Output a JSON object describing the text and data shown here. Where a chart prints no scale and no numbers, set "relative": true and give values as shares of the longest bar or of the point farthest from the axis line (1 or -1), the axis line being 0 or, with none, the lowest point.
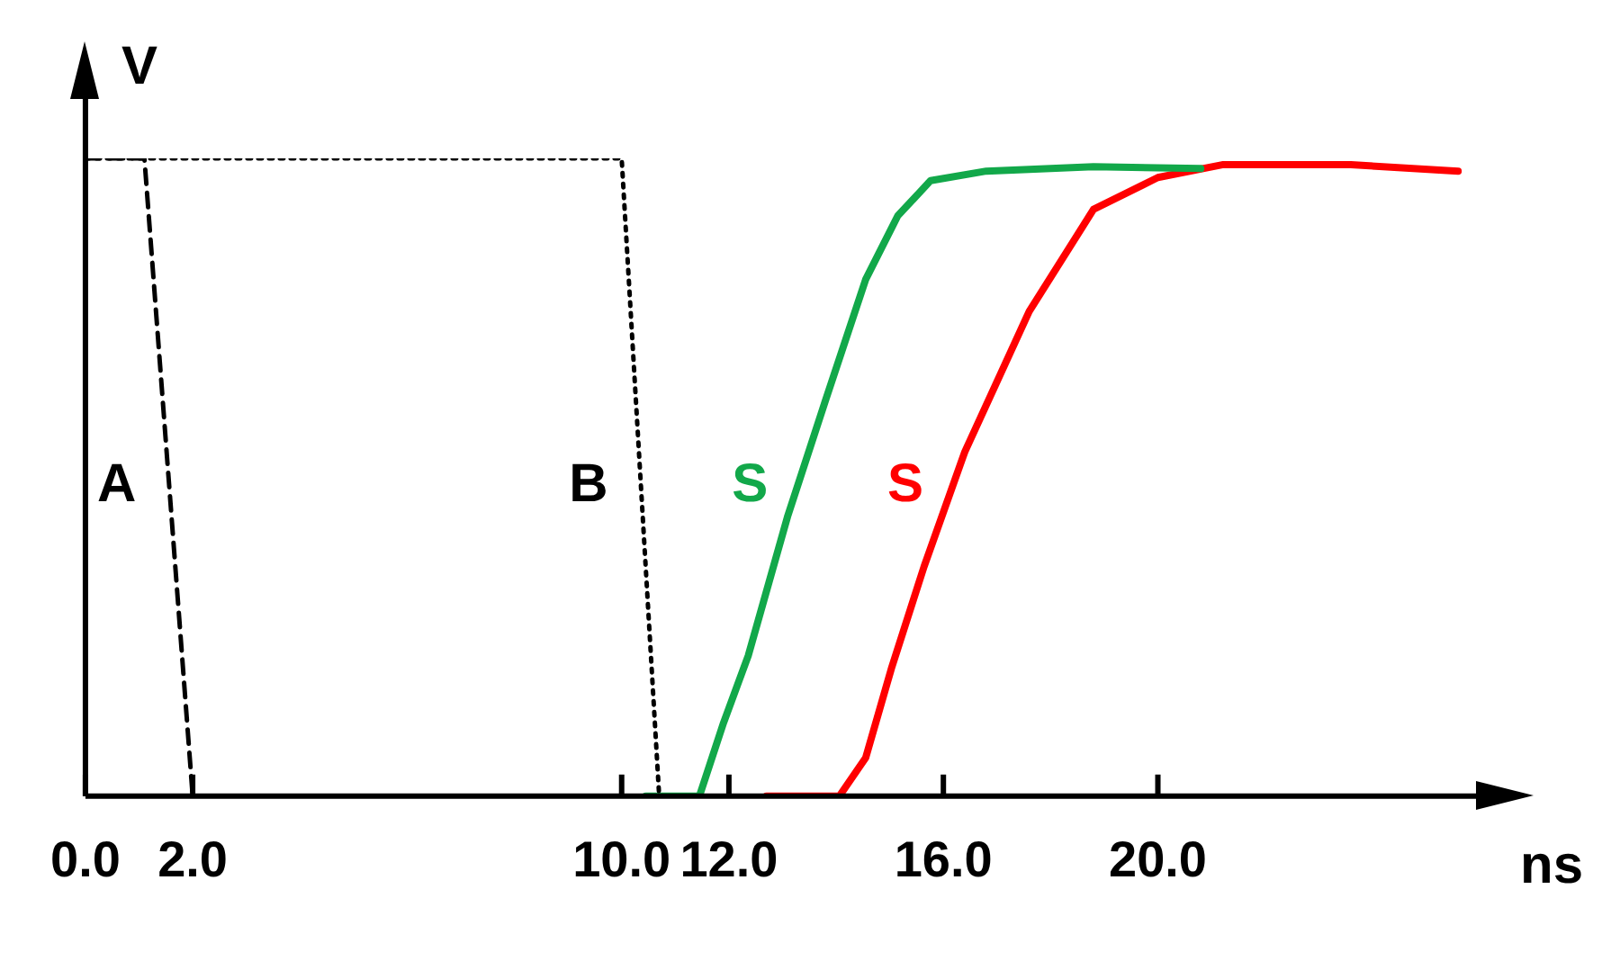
{
  "chart_data": {
    "type": "line",
    "relative": true,
    "xlabel": "ns",
    "ylabel": "V",
    "xlim": [
      0,
      26
    ],
    "xticks": [
      {
        "value": 0,
        "label": "0.0"
      },
      {
        "value": 2,
        "label": "2.0"
      },
      {
        "value": 10,
        "label": "10.0"
      },
      {
        "value": 12,
        "label": "12.0"
      },
      {
        "value": 16,
        "label": "16.0"
      },
      {
        "value": 20,
        "label": "20.0"
      }
    ],
    "grid": false,
    "legend": false,
    "marker": "none",
    "series": [
      {
        "name": "A",
        "color": "#000000",
        "line_style": "dashed",
        "x": [
          0,
          1.1,
          2.0
        ],
        "values": [
          1,
          1,
          0
        ]
      },
      {
        "name": "B",
        "color": "#000000",
        "line_style": "dotted",
        "x": [
          0,
          10.0,
          10.7
        ],
        "values": [
          1,
          1,
          0
        ]
      },
      {
        "name": "S",
        "color": "#12a84a",
        "line_style": "solid",
        "x": [
          10.45,
          11.45,
          11.9,
          12.36,
          13.1,
          13.8,
          14.55,
          15.15,
          15.76,
          16.8,
          18.8,
          20.8
        ],
        "values": [
          0,
          0,
          0.115,
          0.22,
          0.44,
          0.62,
          0.81,
          0.91,
          0.965,
          0.98,
          0.987,
          0.984
        ]
      },
      {
        "name": "S",
        "color": "#ff0000",
        "line_style": "solid",
        "x": [
          12.7,
          14.06,
          14.55,
          15.03,
          15.64,
          16.4,
          17.6,
          18.8,
          20,
          21.2,
          23.6,
          25.6
        ],
        "values": [
          0,
          0,
          0.06,
          0.2,
          0.36,
          0.54,
          0.76,
          0.92,
          0.97,
          0.99,
          0.99,
          0.98
        ]
      }
    ]
  }
}
